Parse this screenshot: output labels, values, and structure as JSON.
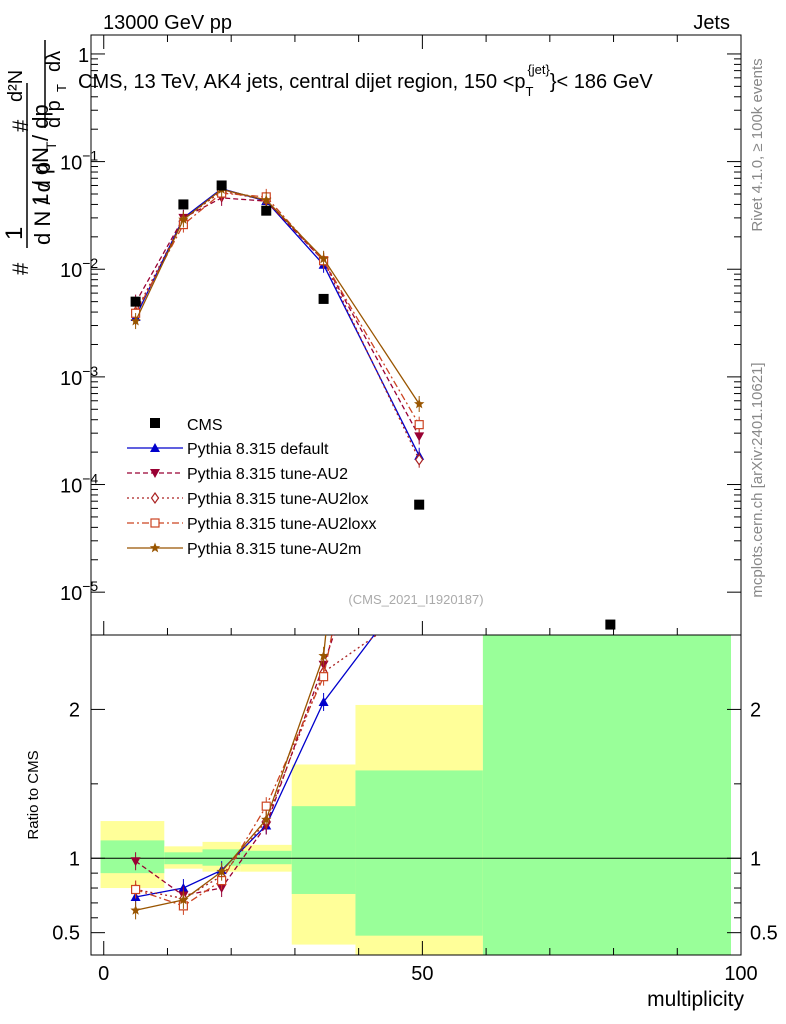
{
  "header": {
    "energy": "13000 GeV pp",
    "category": "Jets"
  },
  "side_labels": {
    "rivet": "Rivet 4.1.0, ≥ 100k events",
    "mcplots": "mcplots.cern.ch [arXiv:2401.10621]"
  },
  "chart_data": {
    "type": "line",
    "title": "CMS, 13 TeV, AK4 jets, central dijet region, 150 <p",
    "title_sup": "{jet}",
    "title_sub": "T",
    "title_end": "}< 186 GeV",
    "watermark": "(CMS_2021_I1920187)",
    "xlabel": "multiplicity",
    "ylabel_top": "1 / dN / dp_T  d²N / dp_T dλ",
    "ylabel_ratio": "Ratio to CMS",
    "xlim": [
      -2,
      100
    ],
    "ylim": [
      4e-06,
      1.5
    ],
    "ratio_ylim": [
      0.35,
      2.5
    ],
    "x_ticks": [
      0,
      50,
      100
    ],
    "y_ticks": [
      {
        "value": 1e-05,
        "base": "10",
        "exp": "−5"
      },
      {
        "value": 0.0001,
        "base": "10",
        "exp": "−4"
      },
      {
        "value": 0.001,
        "base": "10",
        "exp": "−3"
      },
      {
        "value": 0.01,
        "base": "10",
        "exp": "−2"
      },
      {
        "value": 0.1,
        "base": "10",
        "exp": "−1"
      },
      {
        "value": 1,
        "base": "1",
        "exp": ""
      }
    ],
    "ratio_ticks": [
      {
        "value": 0.5,
        "label": "0.5"
      },
      {
        "value": 1,
        "label": "1"
      },
      {
        "value": 2,
        "label": "2"
      }
    ],
    "data": {
      "name": "CMS",
      "color": "#000000",
      "x": [
        5,
        12.5,
        18.5,
        25.5,
        34.5,
        49.5,
        79.5
      ],
      "y": [
        0.005,
        0.04,
        0.06,
        0.035,
        0.0053,
        6.5e-05,
        5e-06
      ]
    },
    "ratio_bins": [
      {
        "x0": -0.5,
        "x1": 9.5,
        "green": [
          0.9,
          1.12
        ],
        "yellow": [
          0.8,
          1.25
        ]
      },
      {
        "x0": 9.5,
        "x1": 15.5,
        "green": [
          0.96,
          1.04
        ],
        "yellow": [
          0.93,
          1.08
        ]
      },
      {
        "x0": 15.5,
        "x1": 21.5,
        "green": [
          0.95,
          1.06
        ],
        "yellow": [
          0.91,
          1.11
        ]
      },
      {
        "x0": 21.5,
        "x1": 29.5,
        "green": [
          0.96,
          1.05
        ],
        "yellow": [
          0.91,
          1.09
        ]
      },
      {
        "x0": 29.5,
        "x1": 39.5,
        "green": [
          0.76,
          1.35
        ],
        "yellow": [
          0.42,
          1.63
        ]
      },
      {
        "x0": 39.5,
        "x1": 59.5,
        "green": [
          0.48,
          1.59
        ],
        "yellow": [
          0.35,
          2.03
        ]
      },
      {
        "x0": 59.5,
        "x1": 99.5,
        "green": [
          0.35,
          2.5
        ],
        "yellow": [
          0.35,
          2.5
        ]
      }
    ],
    "series": [
      {
        "name": "Pythia 8.315 default",
        "color": "#0000cc",
        "dash": "",
        "marker": "triangle-up",
        "x": [
          5,
          12.5,
          18.5,
          25.5,
          34.5,
          49.5
        ],
        "y": [
          0.0036,
          0.03,
          0.056,
          0.043,
          0.011,
          0.000185
        ],
        "ratio": [
          0.74,
          0.8,
          0.92,
          1.22,
          2.05,
          2.9
        ]
      },
      {
        "name": "Pythia 8.315 tune-AU2",
        "color": "#990033",
        "dash": "5,3",
        "marker": "triangle-down",
        "x": [
          5,
          12.5,
          18.5,
          25.5,
          34.5,
          49.5
        ],
        "y": [
          0.0049,
          0.03,
          0.046,
          0.043,
          0.012,
          0.00028
        ],
        "ratio": [
          0.98,
          0.75,
          0.8,
          1.22,
          2.3,
          4.2
        ]
      },
      {
        "name": "Pythia 8.315 tune-AU2lox",
        "color": "#aa2222",
        "dash": "2,3",
        "marker": "diamond-open",
        "x": [
          5,
          12.5,
          18.5,
          25.5,
          34.5,
          49.5
        ],
        "y": [
          0.004,
          0.029,
          0.053,
          0.044,
          0.012,
          0.00017
        ],
        "ratio": [
          0.79,
          0.73,
          0.88,
          1.25,
          2.25,
          2.7
        ]
      },
      {
        "name": "Pythia 8.315 tune-AU2loxx",
        "color": "#cc4422",
        "dash": "7,3,2,3",
        "marker": "square-open",
        "x": [
          5,
          12.5,
          18.5,
          25.5,
          34.5,
          49.5
        ],
        "y": [
          0.0039,
          0.026,
          0.051,
          0.047,
          0.012,
          0.00036
        ],
        "ratio": [
          0.79,
          0.68,
          0.85,
          1.35,
          2.22,
          5.5
        ]
      },
      {
        "name": "Pythia 8.315 tune-AU2m",
        "color": "#995500",
        "dash": "",
        "marker": "star",
        "x": [
          5,
          12.5,
          18.5,
          25.5,
          34.5,
          49.5
        ],
        "y": [
          0.0033,
          0.029,
          0.055,
          0.044,
          0.0125,
          0.00056
        ],
        "ratio": [
          0.65,
          0.72,
          0.91,
          1.26,
          2.36,
          8.6
        ]
      }
    ]
  }
}
